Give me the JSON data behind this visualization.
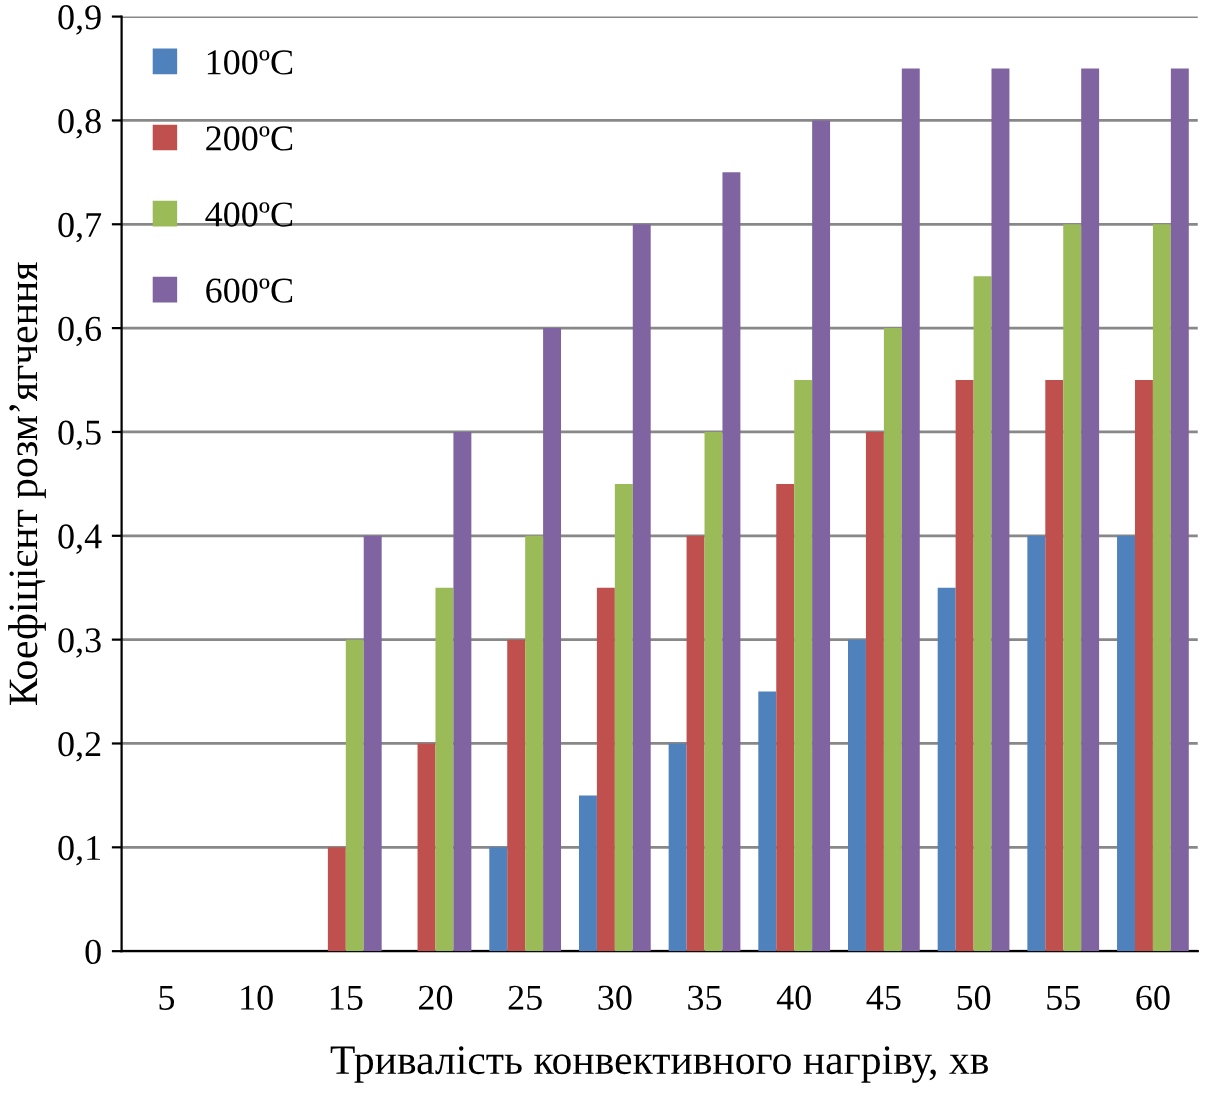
{
  "chart_data": {
    "type": "bar",
    "xlabel": "Тривалість конвективного нагріву, хв",
    "ylabel": "Коефіцієнт розм’ягчення",
    "categories": [
      "5",
      "10",
      "15",
      "20",
      "25",
      "30",
      "35",
      "40",
      "45",
      "50",
      "55",
      "60"
    ],
    "series": [
      {
        "name": "100ºC",
        "color": "#4f81bd",
        "values": [
          0,
          0,
          0,
          0,
          0.1,
          0.15,
          0.2,
          0.25,
          0.3,
          0.35,
          0.4,
          0.4
        ]
      },
      {
        "name": "200ºC",
        "color": "#c0504d",
        "values": [
          0,
          0,
          0.1,
          0.2,
          0.3,
          0.35,
          0.4,
          0.45,
          0.5,
          0.55,
          0.55,
          0.55
        ]
      },
      {
        "name": "400ºC",
        "color": "#9bbb59",
        "values": [
          0,
          0,
          0.3,
          0.35,
          0.4,
          0.45,
          0.5,
          0.55,
          0.6,
          0.65,
          0.7,
          0.7
        ]
      },
      {
        "name": "600ºC",
        "color": "#8064a2",
        "values": [
          0,
          0,
          0.4,
          0.5,
          0.6,
          0.7,
          0.75,
          0.8,
          0.85,
          0.85,
          0.85,
          0.85
        ]
      }
    ],
    "ylim": [
      0,
      0.9
    ],
    "yticks": [
      0,
      {
        "value": 0.1,
        "label": "0,1"
      },
      {
        "value": 0.2,
        "label": "0,2"
      },
      {
        "value": 0.3,
        "label": "0,3"
      },
      {
        "value": 0.4,
        "label": "0,4"
      },
      {
        "value": 0.5,
        "label": "0,5"
      },
      {
        "value": 0.6,
        "label": "0,6"
      },
      {
        "value": 0.7,
        "label": "0,7"
      },
      {
        "value": 0.8,
        "label": "0,8"
      },
      {
        "value": 0.9,
        "label": "0,9"
      }
    ],
    "grid": "y",
    "legend": "top left"
  }
}
